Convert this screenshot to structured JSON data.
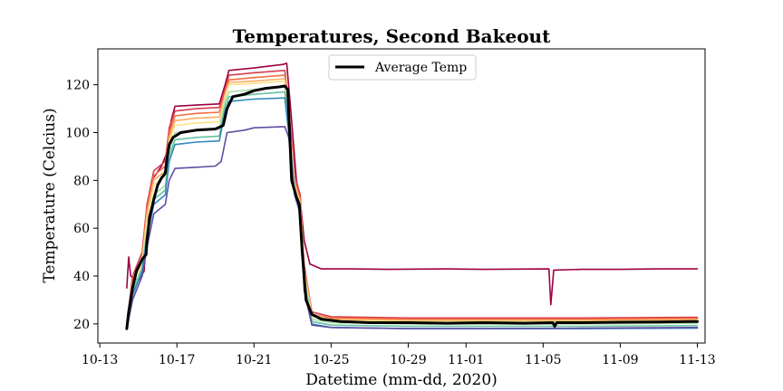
{
  "chart_data": {
    "type": "line",
    "title": "Temperatures, Second Bakeout",
    "xlabel": "Datetime (mm-dd, 2020)",
    "ylabel": "Temperature (Celcius)",
    "xlim": [
      -0.1,
      31.4
    ],
    "ylim": [
      12,
      135
    ],
    "xticks": [
      {
        "label": "10-13",
        "day": 0
      },
      {
        "label": "10-17",
        "day": 4
      },
      {
        "label": "10-21",
        "day": 8
      },
      {
        "label": "10-25",
        "day": 12
      },
      {
        "label": "10-29",
        "day": 16
      },
      {
        "label": "11-01",
        "day": 19
      },
      {
        "label": "11-05",
        "day": 23
      },
      {
        "label": "11-09",
        "day": 27
      },
      {
        "label": "11-13",
        "day": 31
      }
    ],
    "yticks": [
      20,
      40,
      60,
      80,
      100,
      120
    ],
    "grid": false,
    "legend": {
      "position": "top-center",
      "entries": [
        "Average Temp"
      ]
    },
    "average": {
      "name": "Average Temp",
      "color": "#000000",
      "points": [
        [
          1.4,
          18
        ],
        [
          1.5,
          25
        ],
        [
          1.7,
          35
        ],
        [
          1.9,
          42
        ],
        [
          2.2,
          47
        ],
        [
          2.4,
          49
        ],
        [
          2.45,
          55
        ],
        [
          2.6,
          65
        ],
        [
          2.8,
          72
        ],
        [
          3.0,
          78
        ],
        [
          3.2,
          81
        ],
        [
          3.4,
          83
        ],
        [
          3.5,
          90
        ],
        [
          3.6,
          95
        ],
        [
          3.8,
          98
        ],
        [
          4.2,
          100
        ],
        [
          5.0,
          101
        ],
        [
          6.0,
          101.5
        ],
        [
          6.4,
          103
        ],
        [
          6.6,
          110
        ],
        [
          6.9,
          115
        ],
        [
          7.5,
          116
        ],
        [
          8.0,
          117.5
        ],
        [
          8.6,
          118.5
        ],
        [
          9.2,
          119
        ],
        [
          9.6,
          119.5
        ],
        [
          9.75,
          118
        ],
        [
          9.85,
          100
        ],
        [
          9.95,
          80
        ],
        [
          10.2,
          73
        ],
        [
          10.35,
          70
        ],
        [
          10.5,
          50
        ],
        [
          10.7,
          30
        ],
        [
          11.0,
          24
        ],
        [
          11.5,
          22
        ],
        [
          12.5,
          21
        ],
        [
          14,
          20.5
        ],
        [
          16,
          20.5
        ],
        [
          18,
          20.3
        ],
        [
          20,
          20.5
        ],
        [
          22,
          20.3
        ],
        [
          23.5,
          20.5
        ],
        [
          23.6,
          19
        ],
        [
          23.7,
          20.5
        ],
        [
          25,
          20.5
        ],
        [
          27,
          20.7
        ],
        [
          29,
          20.8
        ],
        [
          31,
          21
        ]
      ]
    },
    "series": [
      {
        "color": "#9e0142",
        "points": [
          [
            1.4,
            35
          ],
          [
            1.5,
            48
          ],
          [
            1.6,
            40
          ],
          [
            2.0,
            38
          ],
          [
            2.3,
            42
          ],
          [
            2.5,
            65
          ],
          [
            2.7,
            80
          ],
          [
            3.2,
            86
          ],
          [
            3.5,
            92
          ],
          [
            3.7,
            105
          ],
          [
            3.9,
            111
          ],
          [
            5,
            111.5
          ],
          [
            6.2,
            112
          ],
          [
            6.5,
            120
          ],
          [
            6.7,
            126
          ],
          [
            8,
            127
          ],
          [
            9.5,
            128.5
          ],
          [
            9.7,
            129
          ],
          [
            9.9,
            110
          ],
          [
            10.2,
            80
          ],
          [
            10.4,
            72
          ],
          [
            10.6,
            55
          ],
          [
            10.9,
            45
          ],
          [
            11.5,
            43
          ],
          [
            13,
            43
          ],
          [
            15,
            42.8
          ],
          [
            18,
            43
          ],
          [
            20,
            42.8
          ],
          [
            23.3,
            43
          ],
          [
            23.4,
            28
          ],
          [
            23.55,
            42.5
          ],
          [
            25,
            42.8
          ],
          [
            27,
            42.8
          ],
          [
            29,
            43
          ],
          [
            31,
            43
          ]
        ]
      },
      {
        "color": "#d53e4f",
        "points": [
          [
            1.4,
            20
          ],
          [
            1.7,
            40
          ],
          [
            2.2,
            50
          ],
          [
            2.45,
            70
          ],
          [
            2.8,
            84
          ],
          [
            3.4,
            88
          ],
          [
            3.6,
            102
          ],
          [
            3.9,
            109
          ],
          [
            5,
            110
          ],
          [
            6.2,
            110.5
          ],
          [
            6.5,
            118
          ],
          [
            6.7,
            124
          ],
          [
            8,
            125
          ],
          [
            9.6,
            126
          ],
          [
            9.8,
            110
          ],
          [
            10.1,
            82
          ],
          [
            10.4,
            74
          ],
          [
            10.6,
            45
          ],
          [
            11,
            25
          ],
          [
            12,
            23
          ],
          [
            16,
            22.5
          ],
          [
            20,
            22.5
          ],
          [
            25,
            22.5
          ],
          [
            31,
            22.8
          ]
        ]
      },
      {
        "color": "#f46d43",
        "points": [
          [
            1.4,
            20
          ],
          [
            1.7,
            38
          ],
          [
            2.2,
            48
          ],
          [
            2.45,
            68
          ],
          [
            2.8,
            82
          ],
          [
            3.4,
            86
          ],
          [
            3.6,
            100
          ],
          [
            3.9,
            107
          ],
          [
            5,
            108
          ],
          [
            6.2,
            108.5
          ],
          [
            6.5,
            117
          ],
          [
            6.7,
            122
          ],
          [
            8,
            123
          ],
          [
            9.6,
            124
          ],
          [
            9.8,
            108
          ],
          [
            10.1,
            80
          ],
          [
            10.4,
            72
          ],
          [
            10.6,
            44
          ],
          [
            11,
            24
          ],
          [
            12,
            22.5
          ],
          [
            16,
            22
          ],
          [
            20,
            22
          ],
          [
            25,
            22
          ],
          [
            31,
            22.3
          ]
        ]
      },
      {
        "color": "#fdae61",
        "points": [
          [
            1.4,
            20
          ],
          [
            1.7,
            37
          ],
          [
            2.2,
            47
          ],
          [
            2.45,
            66
          ],
          [
            2.8,
            80
          ],
          [
            3.4,
            84
          ],
          [
            3.6,
            98
          ],
          [
            3.9,
            105
          ],
          [
            5,
            106
          ],
          [
            6.2,
            106.5
          ],
          [
            6.5,
            116
          ],
          [
            6.7,
            121
          ],
          [
            8,
            121.5
          ],
          [
            9.6,
            122.5
          ],
          [
            9.8,
            106
          ],
          [
            10.1,
            79
          ],
          [
            10.4,
            71
          ],
          [
            10.6,
            43
          ],
          [
            11,
            24
          ],
          [
            12,
            22
          ],
          [
            16,
            21.5
          ],
          [
            20,
            21.5
          ],
          [
            25,
            21.5
          ],
          [
            31,
            21.8
          ]
        ]
      },
      {
        "color": "#fee08b",
        "points": [
          [
            1.4,
            20
          ],
          [
            1.7,
            36
          ],
          [
            2.2,
            46
          ],
          [
            2.45,
            64
          ],
          [
            2.8,
            78
          ],
          [
            3.4,
            82
          ],
          [
            3.6,
            96
          ],
          [
            3.9,
            103
          ],
          [
            5,
            104
          ],
          [
            6.2,
            104.5
          ],
          [
            6.5,
            115
          ],
          [
            6.7,
            120
          ],
          [
            8,
            120.5
          ],
          [
            9.6,
            121.5
          ],
          [
            9.8,
            105
          ],
          [
            10.1,
            78
          ],
          [
            10.4,
            70
          ],
          [
            10.6,
            42
          ],
          [
            11,
            23
          ],
          [
            12,
            21.5
          ],
          [
            16,
            21
          ],
          [
            20,
            21
          ],
          [
            25,
            21
          ],
          [
            31,
            21.3
          ]
        ]
      },
      {
        "color": "#abdda4",
        "points": [
          [
            1.4,
            19
          ],
          [
            1.7,
            34
          ],
          [
            2.2,
            44
          ],
          [
            2.45,
            60
          ],
          [
            2.8,
            74
          ],
          [
            3.4,
            78
          ],
          [
            3.6,
            92
          ],
          [
            3.9,
            100
          ],
          [
            5,
            101
          ],
          [
            6.2,
            101.5
          ],
          [
            6.5,
            113
          ],
          [
            6.7,
            117
          ],
          [
            8,
            118
          ],
          [
            9.6,
            119
          ],
          [
            9.8,
            103
          ],
          [
            10.1,
            77
          ],
          [
            10.4,
            69
          ],
          [
            10.6,
            40
          ],
          [
            11,
            22
          ],
          [
            12,
            20.5
          ],
          [
            16,
            20
          ],
          [
            20,
            20
          ],
          [
            25,
            20
          ],
          [
            31,
            20.3
          ]
        ]
      },
      {
        "color": "#66c2a5",
        "points": [
          [
            1.4,
            19
          ],
          [
            1.7,
            33
          ],
          [
            2.2,
            43
          ],
          [
            2.45,
            58
          ],
          [
            2.8,
            72
          ],
          [
            3.4,
            76
          ],
          [
            3.6,
            90
          ],
          [
            3.9,
            97
          ],
          [
            5,
            98
          ],
          [
            6.2,
            98.5
          ],
          [
            6.5,
            111
          ],
          [
            6.7,
            115
          ],
          [
            8,
            116
          ],
          [
            9.6,
            117
          ],
          [
            9.8,
            102
          ],
          [
            10.1,
            76
          ],
          [
            10.4,
            68
          ],
          [
            10.6,
            38
          ],
          [
            11,
            21
          ],
          [
            12,
            19.5
          ],
          [
            16,
            19
          ],
          [
            20,
            19
          ],
          [
            25,
            19
          ],
          [
            31,
            19.3
          ]
        ]
      },
      {
        "color": "#3288bd",
        "points": [
          [
            1.4,
            18
          ],
          [
            1.7,
            32
          ],
          [
            2.2,
            42
          ],
          [
            2.45,
            56
          ],
          [
            2.8,
            70
          ],
          [
            3.4,
            74
          ],
          [
            3.6,
            88
          ],
          [
            3.9,
            95
          ],
          [
            5,
            96
          ],
          [
            6.2,
            96.5
          ],
          [
            6.5,
            109
          ],
          [
            6.7,
            113
          ],
          [
            8,
            114
          ],
          [
            9.6,
            114.5
          ],
          [
            9.8,
            100
          ],
          [
            10.1,
            75
          ],
          [
            10.4,
            67
          ],
          [
            10.6,
            36
          ],
          [
            11,
            20
          ],
          [
            12,
            18.5
          ],
          [
            16,
            18
          ],
          [
            20,
            18
          ],
          [
            25,
            18
          ],
          [
            31,
            18.2
          ]
        ]
      },
      {
        "color": "#5e4fa2",
        "points": [
          [
            1.4,
            18
          ],
          [
            1.7,
            30
          ],
          [
            2.2,
            40
          ],
          [
            2.45,
            52
          ],
          [
            2.8,
            66
          ],
          [
            3.4,
            70
          ],
          [
            3.6,
            80
          ],
          [
            3.9,
            85
          ],
          [
            5,
            85.5
          ],
          [
            6.0,
            86
          ],
          [
            6.3,
            88
          ],
          [
            6.6,
            100
          ],
          [
            7.5,
            101
          ],
          [
            8,
            102
          ],
          [
            9.6,
            102.5
          ],
          [
            9.8,
            98
          ],
          [
            10.1,
            74
          ],
          [
            10.4,
            66
          ],
          [
            10.6,
            34
          ],
          [
            11,
            19.5
          ],
          [
            12,
            18.5
          ],
          [
            16,
            18
          ],
          [
            20,
            18
          ],
          [
            25,
            18.2
          ],
          [
            31,
            18.5
          ]
        ]
      }
    ]
  }
}
